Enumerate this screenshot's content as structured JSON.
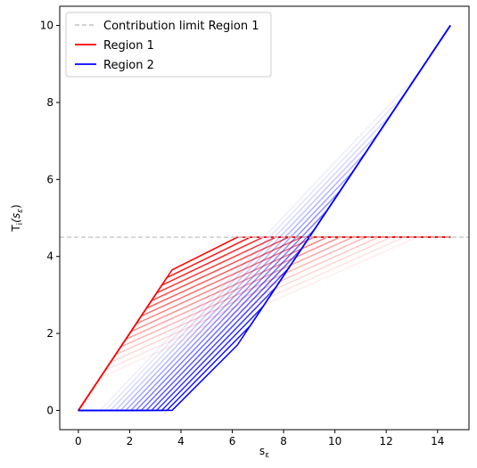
{
  "chart_data": {
    "type": "line",
    "xlabel": "s",
    "xlabel_sub": "ε",
    "ylabel_main": "T",
    "ylabel_sub": "i",
    "ylabel_arg": "(s",
    "ylabel_arg_sub": "ε",
    "ylabel_close": ")",
    "xlim": [
      -0.725,
      15.225
    ],
    "ylim": [
      -0.5,
      10.5
    ],
    "xticks": [
      0,
      2,
      4,
      6,
      8,
      10,
      12,
      14
    ],
    "yticks": [
      0,
      2,
      4,
      6,
      8,
      10
    ],
    "grid": false,
    "legend_position": "top-left",
    "legend": [
      {
        "label": "Contribution limit Region 1",
        "color": "#cccccc",
        "style": "dashed"
      },
      {
        "label": "Region 1",
        "color": "#ff0000",
        "style": "solid"
      },
      {
        "label": "Region 2",
        "color": "#0000ff",
        "style": "solid"
      }
    ],
    "reference_line": {
      "name": "Contribution limit Region 1",
      "y": 4.5,
      "color": "#cccccc"
    },
    "series": [
      {
        "name": "Region 1",
        "color": "#ff0000",
        "note_family": "fading family of curves, most opaque = darkest",
        "curves": [
          {
            "opacity": 1.0,
            "x": [
              0,
              3.65,
              6.2,
              14.5
            ],
            "y": [
              0,
              3.65,
              4.5,
              4.5
            ]
          },
          {
            "opacity": 0.92,
            "x": [
              0,
              3.45,
              6.7,
              14.5
            ],
            "y": [
              0,
              3.45,
              4.5,
              4.5
            ]
          },
          {
            "opacity": 0.85,
            "x": [
              0,
              3.25,
              7.2,
              14.5
            ],
            "y": [
              0,
              3.25,
              4.5,
              4.5
            ]
          },
          {
            "opacity": 0.78,
            "x": [
              0,
              3.05,
              7.7,
              14.5
            ],
            "y": [
              0,
              3.05,
              4.5,
              4.5
            ]
          },
          {
            "opacity": 0.71,
            "x": [
              0,
              2.85,
              8.2,
              14.5
            ],
            "y": [
              0,
              2.85,
              4.5,
              4.5
            ]
          },
          {
            "opacity": 0.64,
            "x": [
              0,
              2.65,
              8.7,
              14.5
            ],
            "y": [
              0,
              2.65,
              4.5,
              4.5
            ]
          },
          {
            "opacity": 0.57,
            "x": [
              0,
              2.45,
              9.2,
              14.5
            ],
            "y": [
              0,
              2.45,
              4.5,
              4.5
            ]
          },
          {
            "opacity": 0.5,
            "x": [
              0,
              2.25,
              9.7,
              14.5
            ],
            "y": [
              0,
              2.25,
              4.5,
              4.5
            ]
          },
          {
            "opacity": 0.43,
            "x": [
              0,
              2.05,
              10.2,
              14.5
            ],
            "y": [
              0,
              2.05,
              4.5,
              4.5
            ]
          },
          {
            "opacity": 0.36,
            "x": [
              0,
              1.85,
              10.7,
              14.5
            ],
            "y": [
              0,
              1.85,
              4.5,
              4.5
            ]
          },
          {
            "opacity": 0.29,
            "x": [
              0,
              1.65,
              11.2,
              14.5
            ],
            "y": [
              0,
              1.65,
              4.5,
              4.5
            ]
          },
          {
            "opacity": 0.22,
            "x": [
              0,
              1.45,
              11.7,
              14.5
            ],
            "y": [
              0,
              1.45,
              4.5,
              4.5
            ]
          },
          {
            "opacity": 0.16,
            "x": [
              0,
              1.25,
              12.2,
              14.5
            ],
            "y": [
              0,
              1.25,
              4.5,
              4.5
            ]
          },
          {
            "opacity": 0.11,
            "x": [
              0,
              1.05,
              12.7,
              14.5
            ],
            "y": [
              0,
              1.05,
              4.5,
              4.5
            ]
          },
          {
            "opacity": 0.07,
            "x": [
              0,
              0.85,
              13.2,
              14.5
            ],
            "y": [
              0,
              0.85,
              4.5,
              4.5
            ]
          }
        ]
      },
      {
        "name": "Region 2",
        "color": "#0000ff",
        "curves": [
          {
            "opacity": 1.0,
            "x": [
              0,
              3.65,
              6.2,
              14.5
            ],
            "y": [
              0,
              0,
              1.7,
              10
            ]
          },
          {
            "opacity": 0.92,
            "x": [
              0,
              3.45,
              6.7,
              14.5
            ],
            "y": [
              0,
              0,
              2.2,
              10
            ]
          },
          {
            "opacity": 0.85,
            "x": [
              0,
              3.25,
              7.2,
              14.5
            ],
            "y": [
              0,
              0,
              2.7,
              10
            ]
          },
          {
            "opacity": 0.78,
            "x": [
              0,
              3.05,
              7.7,
              14.5
            ],
            "y": [
              0,
              0,
              3.2,
              10
            ]
          },
          {
            "opacity": 0.71,
            "x": [
              0,
              2.85,
              8.2,
              14.5
            ],
            "y": [
              0,
              0,
              3.7,
              10
            ]
          },
          {
            "opacity": 0.64,
            "x": [
              0,
              2.65,
              8.7,
              14.5
            ],
            "y": [
              0,
              0,
              4.2,
              10
            ]
          },
          {
            "opacity": 0.57,
            "x": [
              0,
              2.45,
              9.2,
              14.5
            ],
            "y": [
              0,
              0,
              4.7,
              10
            ]
          },
          {
            "opacity": 0.5,
            "x": [
              0,
              2.25,
              9.7,
              14.5
            ],
            "y": [
              0,
              0,
              5.2,
              10
            ]
          },
          {
            "opacity": 0.43,
            "x": [
              0,
              2.05,
              10.2,
              14.5
            ],
            "y": [
              0,
              0,
              5.7,
              10
            ]
          },
          {
            "opacity": 0.36,
            "x": [
              0,
              1.85,
              10.7,
              14.5
            ],
            "y": [
              0,
              0,
              6.2,
              10
            ]
          },
          {
            "opacity": 0.29,
            "x": [
              0,
              1.65,
              11.2,
              14.5
            ],
            "y": [
              0,
              0,
              6.7,
              10
            ]
          },
          {
            "opacity": 0.22,
            "x": [
              0,
              1.45,
              11.7,
              14.5
            ],
            "y": [
              0,
              0,
              7.2,
              10
            ]
          },
          {
            "opacity": 0.16,
            "x": [
              0,
              1.25,
              12.2,
              14.5
            ],
            "y": [
              0,
              0,
              7.7,
              10
            ]
          },
          {
            "opacity": 0.11,
            "x": [
              0,
              1.05,
              12.7,
              14.5
            ],
            "y": [
              0,
              0,
              8.2,
              10
            ]
          },
          {
            "opacity": 0.07,
            "x": [
              0,
              0.85,
              13.2,
              14.5
            ],
            "y": [
              0,
              0,
              8.7,
              10
            ]
          }
        ]
      }
    ]
  }
}
